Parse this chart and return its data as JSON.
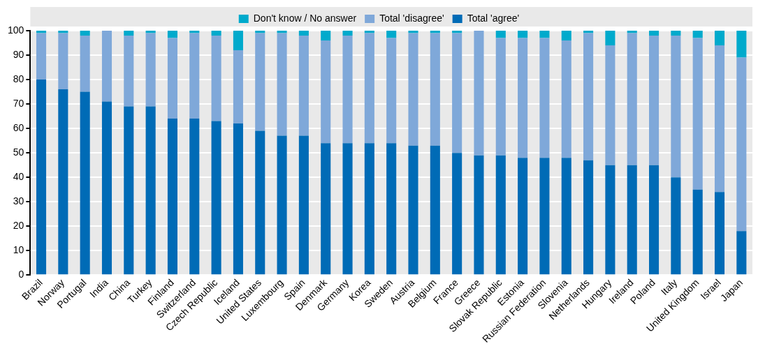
{
  "chart_data": {
    "type": "bar",
    "stacked": true,
    "categories": [
      "Brazil",
      "Norway",
      "Portugal",
      "India",
      "China",
      "Turkey",
      "Finland",
      "Switzerland",
      "Czech Republic",
      "Iceland",
      "United States",
      "Luxembourg",
      "Spain",
      "Denmark",
      "Germany",
      "Korea",
      "Sweden",
      "Austria",
      "Belgium",
      "France",
      "Greece",
      "Slovak Republic",
      "Estonia",
      "Russian Federation",
      "Slovenia",
      "Netherlands",
      "Hungary",
      "Ireland",
      "Poland",
      "Italy",
      "United Kingdom",
      "Israel",
      "Japan"
    ],
    "series": [
      {
        "name": "Total 'agree'",
        "color": "#006bb6",
        "values": [
          80,
          76,
          75,
          71,
          69,
          69,
          64,
          64,
          63,
          62,
          59,
          57,
          57,
          54,
          54,
          54,
          54,
          53,
          53,
          50,
          49,
          49,
          48,
          48,
          48,
          47,
          45,
          45,
          45,
          40,
          35,
          34,
          18
        ]
      },
      {
        "name": "Total 'disagree'",
        "color": "#7fa8d9",
        "values": [
          19,
          23,
          23,
          29,
          29,
          30,
          33,
          35,
          35,
          30,
          40,
          42,
          41,
          42,
          44,
          45,
          43,
          46,
          46,
          49,
          51,
          48,
          49,
          49,
          48,
          52,
          49,
          54,
          53,
          58,
          62,
          60,
          71
        ]
      },
      {
        "name": "Don't know / No answer",
        "color": "#00aacc",
        "values": [
          1,
          1,
          2,
          0,
          2,
          1,
          3,
          1,
          2,
          8,
          1,
          1,
          2,
          4,
          2,
          1,
          3,
          1,
          1,
          1,
          0,
          3,
          3,
          3,
          4,
          1,
          6,
          1,
          2,
          2,
          3,
          6,
          11
        ]
      }
    ],
    "ylim": [
      0,
      100
    ],
    "yticks": [
      0,
      10,
      20,
      30,
      40,
      50,
      60,
      70,
      80,
      90,
      100
    ],
    "grid": true,
    "legend": "top"
  }
}
